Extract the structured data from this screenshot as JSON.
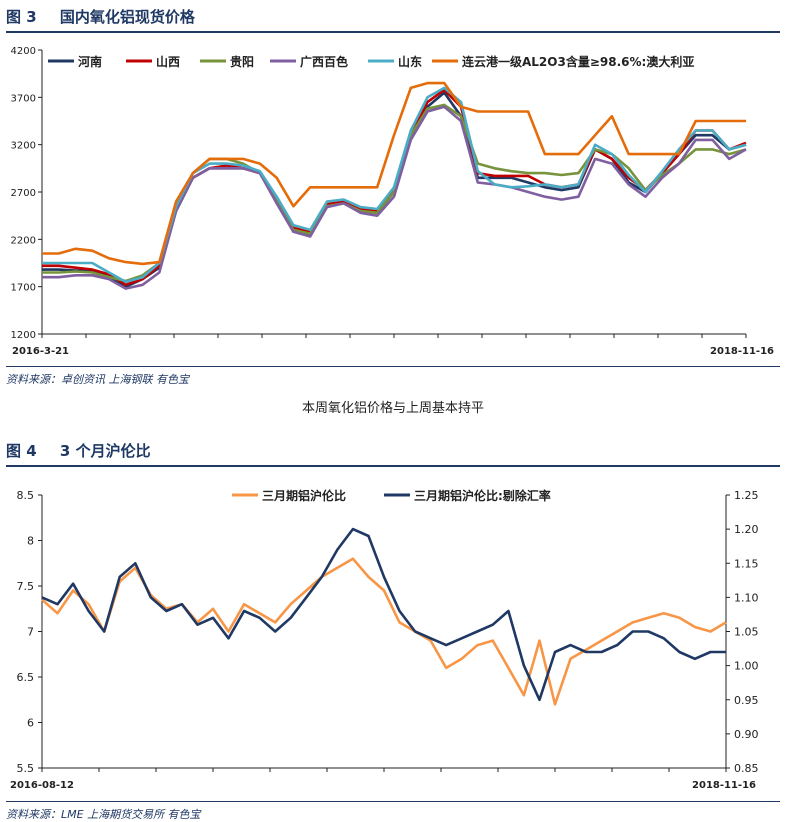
{
  "figure3": {
    "number": "图 3",
    "title": "国内氧化铝现货价格",
    "source": "资料来源：卓创资讯 上海钢联  有色宝"
  },
  "caption": "本周氧化铝价格与上周基本持平",
  "figure4": {
    "number": "图 4",
    "title": "3 个月沪伦比",
    "source": "资料来源：LME  上海期货交易所  有色宝"
  },
  "chart_data": [
    {
      "type": "line",
      "ylim": [
        1200,
        4200
      ],
      "yticks": [
        1200,
        1700,
        2200,
        2700,
        3200,
        3700,
        4200
      ],
      "x_start_label": "2016-3-21",
      "x_end_label": "2018-11-16",
      "legend_position": "top",
      "series": [
        {
          "name": "河南",
          "color": "#1f3864",
          "values": [
            1880,
            1880,
            1870,
            1870,
            1800,
            1700,
            1780,
            1900,
            2500,
            2850,
            2950,
            2950,
            2950,
            2900,
            2600,
            2300,
            2250,
            2550,
            2600,
            2500,
            2480,
            2700,
            3300,
            3600,
            3750,
            3500,
            2850,
            2850,
            2850,
            2800,
            2750,
            2720,
            2750,
            3150,
            3050,
            2800,
            2700,
            2900,
            3100,
            3300,
            3300,
            3150,
            3200
          ]
        },
        {
          "name": "山西",
          "color": "#c00000",
          "values": [
            1920,
            1920,
            1900,
            1880,
            1830,
            1720,
            1780,
            1920,
            2550,
            2850,
            2950,
            2980,
            2950,
            2900,
            2620,
            2320,
            2280,
            2570,
            2600,
            2520,
            2500,
            2720,
            3300,
            3650,
            3780,
            3600,
            2900,
            2870,
            2870,
            2870,
            2780,
            2750,
            2780,
            3150,
            3050,
            2850,
            2720,
            2900,
            3100,
            3350,
            3350,
            3150,
            3220
          ]
        },
        {
          "name": "贵阳",
          "color": "#77933c",
          "values": [
            1850,
            1850,
            1860,
            1850,
            1800,
            1760,
            1820,
            1950,
            2550,
            2900,
            3050,
            3050,
            3000,
            2900,
            2600,
            2300,
            2260,
            2550,
            2580,
            2500,
            2480,
            2700,
            3300,
            3580,
            3620,
            3500,
            3000,
            2950,
            2920,
            2900,
            2900,
            2880,
            2900,
            3150,
            3100,
            2950,
            2720,
            2880,
            3000,
            3150,
            3150,
            3100,
            3150
          ]
        },
        {
          "name": "广西百色",
          "color": "#7f5fa0",
          "values": [
            1800,
            1800,
            1820,
            1820,
            1780,
            1680,
            1720,
            1850,
            2500,
            2850,
            2950,
            2950,
            2950,
            2900,
            2580,
            2280,
            2230,
            2540,
            2580,
            2480,
            2450,
            2650,
            3250,
            3550,
            3600,
            3450,
            2800,
            2780,
            2750,
            2700,
            2650,
            2620,
            2650,
            3050,
            3000,
            2780,
            2650,
            2850,
            3000,
            3250,
            3250,
            3050,
            3150
          ]
        },
        {
          "name": "山东",
          "color": "#4bacc6",
          "values": [
            1950,
            1950,
            1950,
            1950,
            1850,
            1750,
            1800,
            1950,
            2550,
            2900,
            3000,
            3000,
            2980,
            2920,
            2650,
            2350,
            2300,
            2600,
            2620,
            2540,
            2520,
            2750,
            3350,
            3700,
            3800,
            3650,
            2920,
            2780,
            2750,
            2760,
            2780,
            2750,
            2780,
            3200,
            3100,
            2880,
            2700,
            2920,
            3150,
            3350,
            3350,
            3150,
            3200
          ]
        },
        {
          "name": "连云港一级AL2O3含量≥98.6%:澳大利亚",
          "color": "#e46c0a",
          "values": [
            2050,
            2050,
            2100,
            2080,
            2000,
            1960,
            1940,
            1960,
            2600,
            2900,
            3050,
            3050,
            3050,
            3000,
            2850,
            2550,
            2750,
            2750,
            2750,
            2750,
            2750,
            3300,
            3800,
            3850,
            3850,
            3600,
            3550,
            3550,
            3550,
            3550,
            3100,
            3100,
            3100,
            3300,
            3500,
            3100,
            3100,
            3100,
            3100,
            3450,
            3450,
            3450,
            3450
          ]
        }
      ]
    },
    {
      "type": "line",
      "ylim_left": [
        5.5,
        8.5
      ],
      "yticks_left": [
        5.5,
        6,
        6.5,
        7,
        7.5,
        8,
        8.5
      ],
      "ylim_right": [
        0.85,
        1.25
      ],
      "yticks_right": [
        0.85,
        0.9,
        0.95,
        1.0,
        1.05,
        1.1,
        1.15,
        1.2,
        1.25
      ],
      "x_start_label": "2016-08-12",
      "x_end_label": "2018-11-16",
      "legend_position": "top",
      "series": [
        {
          "name": "三月期铝沪伦比",
          "color": "#f79646",
          "axis": "left",
          "values": [
            7.35,
            7.2,
            7.45,
            7.3,
            7.0,
            7.55,
            7.7,
            7.4,
            7.25,
            7.3,
            7.1,
            7.25,
            7.0,
            7.3,
            7.2,
            7.1,
            7.3,
            7.45,
            7.6,
            7.7,
            7.8,
            7.6,
            7.45,
            7.1,
            7.0,
            6.9,
            6.6,
            6.7,
            6.85,
            6.9,
            6.6,
            6.3,
            6.9,
            6.2,
            6.7,
            6.8,
            6.9,
            7.0,
            7.1,
            7.15,
            7.2,
            7.15,
            7.05,
            7.0,
            7.1
          ]
        },
        {
          "name": "三月期铝沪伦比:剔除汇率",
          "color": "#1f3864",
          "axis": "right",
          "values": [
            1.1,
            1.09,
            1.12,
            1.08,
            1.05,
            1.13,
            1.15,
            1.1,
            1.08,
            1.09,
            1.06,
            1.07,
            1.04,
            1.08,
            1.07,
            1.05,
            1.07,
            1.1,
            1.13,
            1.17,
            1.2,
            1.19,
            1.13,
            1.08,
            1.05,
            1.04,
            1.03,
            1.04,
            1.05,
            1.06,
            1.08,
            1.0,
            0.95,
            1.02,
            1.03,
            1.02,
            1.02,
            1.03,
            1.05,
            1.05,
            1.04,
            1.02,
            1.01,
            1.02,
            1.02
          ]
        }
      ]
    }
  ]
}
